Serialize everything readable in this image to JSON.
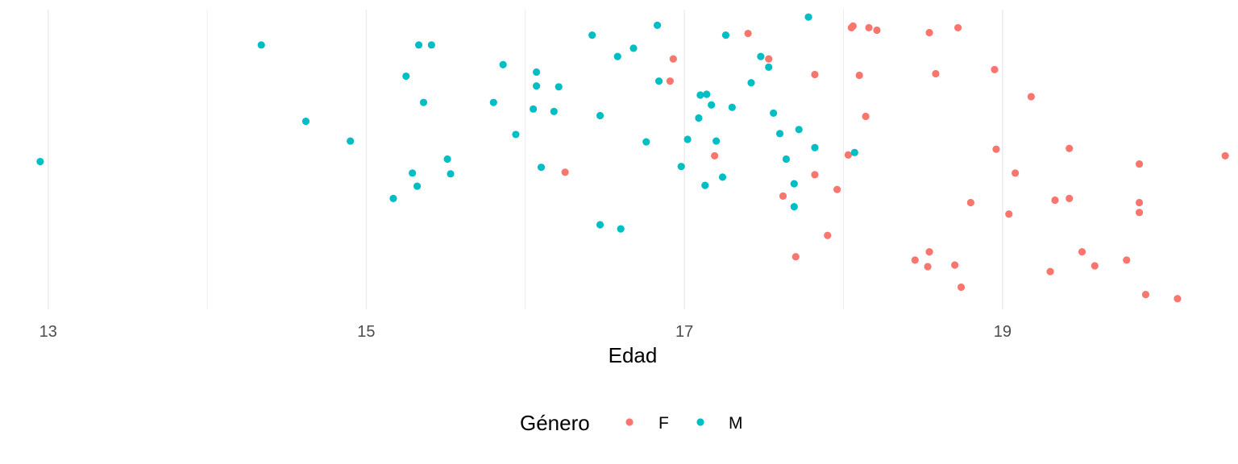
{
  "chart_data": {
    "type": "scatter",
    "title": "",
    "xlabel": "Edad",
    "ylabel": "",
    "xlim": [
      12.9,
      20.45
    ],
    "x_ticks": [
      13,
      15,
      17,
      19
    ],
    "x_tick_labels": [
      "13",
      "15",
      "17",
      "19"
    ],
    "minor_gridlines": [
      14,
      16,
      18
    ],
    "grid": true,
    "y_axis": "jitter (no scale shown)",
    "legend": {
      "title": "Género",
      "position": "bottom"
    },
    "series": [
      {
        "name": "F",
        "color": "#F8766D",
        "points": [
          [
            17.4,
            1.56
          ],
          [
            18.05,
            1.63
          ],
          [
            18.06,
            1.65
          ],
          [
            18.16,
            1.63
          ],
          [
            18.21,
            1.6
          ],
          [
            18.72,
            1.63
          ],
          [
            18.54,
            1.57
          ],
          [
            16.93,
            1.25
          ],
          [
            17.53,
            1.25
          ],
          [
            17.82,
            1.06
          ],
          [
            18.1,
            1.05
          ],
          [
            18.58,
            1.07
          ],
          [
            18.95,
            1.12
          ],
          [
            16.91,
            0.98
          ],
          [
            19.18,
            0.79
          ],
          [
            18.14,
            0.55
          ],
          [
            17.19,
            0.07
          ],
          [
            18.03,
            0.08
          ],
          [
            18.96,
            0.15
          ],
          [
            19.42,
            0.16
          ],
          [
            20.4,
            0.07
          ],
          [
            16.25,
            -0.13
          ],
          [
            17.82,
            -0.16
          ],
          [
            19.08,
            -0.14
          ],
          [
            19.86,
            -0.03
          ],
          [
            17.96,
            -0.34
          ],
          [
            17.62,
            -0.42
          ],
          [
            18.8,
            -0.5
          ],
          [
            19.33,
            -0.47
          ],
          [
            19.42,
            -0.45
          ],
          [
            19.86,
            -0.5
          ],
          [
            19.04,
            -0.64
          ],
          [
            19.86,
            -0.62
          ],
          [
            17.9,
            -0.9
          ],
          [
            17.7,
            -1.16
          ],
          [
            18.45,
            -1.2
          ],
          [
            18.53,
            -1.28
          ],
          [
            18.54,
            -1.1
          ],
          [
            18.7,
            -1.26
          ],
          [
            19.5,
            -1.1
          ],
          [
            19.78,
            -1.2
          ],
          [
            19.58,
            -1.27
          ],
          [
            19.3,
            -1.34
          ],
          [
            18.74,
            -1.53
          ],
          [
            19.9,
            -1.62
          ],
          [
            20.1,
            -1.67
          ]
        ]
      },
      {
        "name": "M",
        "color": "#00BFC4",
        "points": [
          [
            12.95,
            0.0
          ],
          [
            14.34,
            1.42
          ],
          [
            14.62,
            0.49
          ],
          [
            14.9,
            0.25
          ],
          [
            15.33,
            1.42
          ],
          [
            15.41,
            1.42
          ],
          [
            15.25,
            1.04
          ],
          [
            15.36,
            0.72
          ],
          [
            15.51,
            0.03
          ],
          [
            15.29,
            -0.14
          ],
          [
            15.53,
            -0.15
          ],
          [
            15.32,
            -0.3
          ],
          [
            15.17,
            -0.45
          ],
          [
            15.86,
            1.18
          ],
          [
            15.8,
            0.72
          ],
          [
            15.94,
            0.33
          ],
          [
            16.07,
            1.09
          ],
          [
            16.07,
            0.92
          ],
          [
            16.05,
            0.64
          ],
          [
            16.21,
            0.91
          ],
          [
            16.18,
            0.61
          ],
          [
            16.1,
            -0.07
          ],
          [
            16.42,
            1.54
          ],
          [
            16.47,
            0.56
          ],
          [
            16.58,
            1.28
          ],
          [
            16.68,
            1.38
          ],
          [
            16.83,
            1.66
          ],
          [
            16.84,
            0.98
          ],
          [
            17.26,
            1.54
          ],
          [
            17.48,
            1.28
          ],
          [
            17.53,
            1.15
          ],
          [
            17.42,
            0.96
          ],
          [
            17.1,
            0.81
          ],
          [
            17.14,
            0.82
          ],
          [
            17.17,
            0.69
          ],
          [
            17.3,
            0.66
          ],
          [
            17.09,
            0.53
          ],
          [
            17.56,
            0.59
          ],
          [
            17.6,
            0.34
          ],
          [
            17.72,
            0.39
          ],
          [
            17.02,
            0.27
          ],
          [
            17.2,
            0.25
          ],
          [
            16.76,
            0.24
          ],
          [
            16.98,
            -0.06
          ],
          [
            17.64,
            0.03
          ],
          [
            17.24,
            -0.19
          ],
          [
            17.13,
            -0.29
          ],
          [
            17.82,
            0.17
          ],
          [
            18.07,
            0.11
          ],
          [
            17.69,
            -0.27
          ],
          [
            17.69,
            -0.55
          ],
          [
            16.47,
            -0.77
          ],
          [
            16.6,
            -0.82
          ],
          [
            17.78,
            1.76
          ]
        ]
      }
    ]
  }
}
